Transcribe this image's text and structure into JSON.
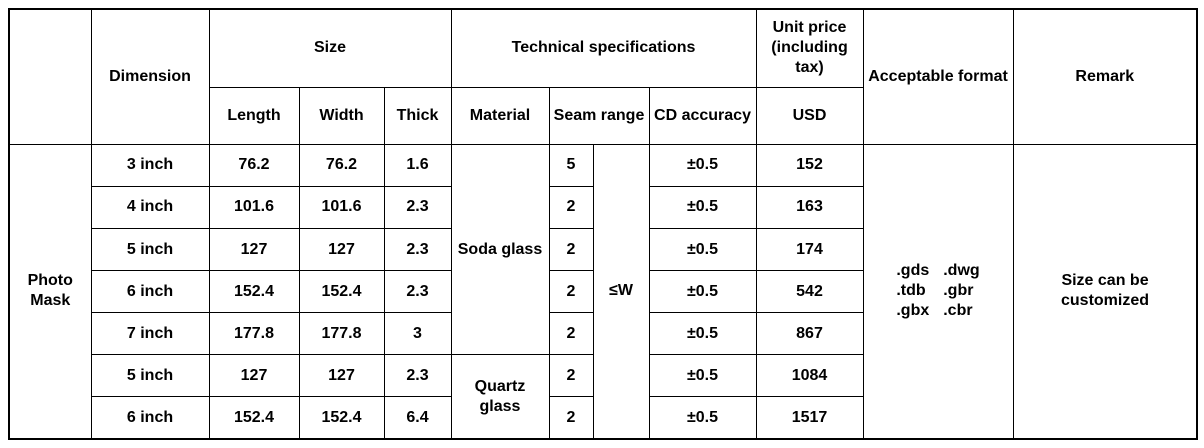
{
  "table": {
    "headers": {
      "dimension": "Dimension",
      "size": "Size",
      "technical": "Technical specifications",
      "unit_price": "Unit price (including tax)",
      "format": "Acceptable format",
      "remark": "Remark",
      "length": "Length",
      "width": "Width",
      "thick": "Thick",
      "material": "Material",
      "seam_range": "Seam range",
      "cd_accuracy": "CD accuracy",
      "usd": "USD"
    },
    "product": "Photo Mask",
    "materials": [
      "Soda glass",
      "Quartz glass"
    ],
    "seam_common": "≤W",
    "rows": [
      {
        "dimension": "3 inch",
        "length": 76.2,
        "width": 76.2,
        "thick": 1.6,
        "seam": 5,
        "cd": "±0.5",
        "usd": 152
      },
      {
        "dimension": "4 inch",
        "length": 101.6,
        "width": 101.6,
        "thick": 2.3,
        "seam": 2,
        "cd": "±0.5",
        "usd": 163
      },
      {
        "dimension": "5 inch",
        "length": 127,
        "width": 127,
        "thick": 2.3,
        "seam": 2,
        "cd": "±0.5",
        "usd": 174
      },
      {
        "dimension": "6 inch",
        "length": 152.4,
        "width": 152.4,
        "thick": 2.3,
        "seam": 2,
        "cd": "±0.5",
        "usd": 542
      },
      {
        "dimension": "7 inch",
        "length": 177.8,
        "width": 177.8,
        "thick": 3,
        "seam": 2,
        "cd": "±0.5",
        "usd": 867
      },
      {
        "dimension": "5 inch",
        "length": 127,
        "width": 127,
        "thick": 2.3,
        "seam": 2,
        "cd": "±0.5",
        "usd": 1084
      },
      {
        "dimension": "6 inch",
        "length": 152.4,
        "width": 152.4,
        "thick": 6.4,
        "seam": 2,
        "cd": "±0.5",
        "usd": 1517
      }
    ],
    "formats": [
      [
        ".gds",
        ".dwg"
      ],
      [
        ".tdb",
        ".gbr"
      ],
      [
        ".gbx",
        ".cbr"
      ]
    ],
    "remark": "Size can be customized"
  }
}
